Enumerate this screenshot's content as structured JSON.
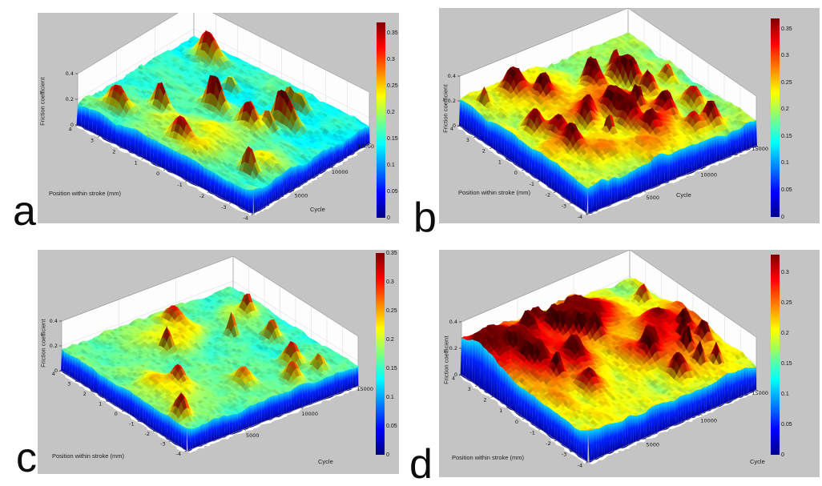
{
  "figure": {
    "background": "#ffffff",
    "panel_background": "#c4c4c4",
    "description": "Four MATLAB-style 3D surface plots (a, b, c, d) of friction coefficient versus position within stroke and cycle number, each with a jet colorbar"
  },
  "colormap": {
    "name": "jet",
    "stops": [
      "#000080",
      "#0000ff",
      "#00ffff",
      "#ffff00",
      "#ff0000",
      "#800000"
    ],
    "fractions": [
      0,
      0.125,
      0.375,
      0.625,
      0.875,
      1
    ]
  },
  "chart_data": [
    {
      "id": "a",
      "panel_label": "a",
      "type": "heatmap",
      "projection": "3d-surface",
      "xlabel": "Cycle",
      "x_ticks": [
        5000,
        10000,
        15000
      ],
      "x_range": [
        0,
        15000
      ],
      "ylabel": "Position within stroke (mm)",
      "y_ticks": [
        4,
        3,
        2,
        1,
        0,
        -1,
        -2,
        -3,
        -4
      ],
      "y_range": [
        -4,
        4
      ],
      "zlabel": "Friction coefficient",
      "z_ticks": [
        0.4,
        0.2,
        0
      ],
      "z_range": [
        0,
        0.4
      ],
      "colorbar_ticks": [
        0.35,
        0.3,
        0.25,
        0.2,
        0.15,
        0.1,
        0.05,
        0
      ],
      "colorbar_range": [
        0,
        0.37
      ],
      "surface": {
        "seed": 17,
        "base_front": 0.17,
        "base_back": 0.14,
        "coarse_amp": 0.018,
        "fine_amp": 0.012,
        "patch_count": 8,
        "patch_amp": 0.045,
        "spike_count": 15,
        "spike_min": 0.26,
        "spike_max": 0.36,
        "hot_bands": [],
        "description": "cyan-green baseline ~0.15-0.2 with scattered yellow patches and ~15 isolated red spikes up to ~0.35; cooler cyan toward high cycles"
      }
    },
    {
      "id": "b",
      "panel_label": "b",
      "type": "heatmap",
      "projection": "3d-surface",
      "xlabel": "Cycle",
      "x_ticks": [
        5000,
        10000,
        15000
      ],
      "x_range": [
        0,
        15000
      ],
      "ylabel": "Position within stroke (mm)",
      "y_ticks": [
        4,
        3,
        2,
        1,
        0,
        -1,
        -2,
        -3,
        -4
      ],
      "y_range": [
        -4,
        4
      ],
      "zlabel": "Friction coefficient",
      "z_ticks": [
        0.4,
        0.2,
        0
      ],
      "z_range": [
        0,
        0.4
      ],
      "colorbar_ticks": [
        0.35,
        0.3,
        0.25,
        0.2,
        0.15,
        0.1,
        0.05,
        0
      ],
      "colorbar_range": [
        0,
        0.37
      ],
      "surface": {
        "seed": 23,
        "base_front": 0.215,
        "base_back": 0.19,
        "coarse_amp": 0.022,
        "fine_amp": 0.014,
        "patch_count": 13,
        "patch_amp": 0.05,
        "spike_count": 26,
        "spike_min": 0.28,
        "spike_max": 0.37,
        "hot_bands": [],
        "description": "yellow-green baseline ~0.2 with many orange patches and numerous red spikes up to ~0.37"
      }
    },
    {
      "id": "c",
      "panel_label": "c",
      "type": "heatmap",
      "projection": "3d-surface",
      "xlabel": "Cycle",
      "x_ticks": [
        5000,
        10000,
        15000
      ],
      "x_range": [
        0,
        15000
      ],
      "ylabel": "Position within stroke (mm)",
      "y_ticks": [
        4,
        3,
        2,
        1,
        0,
        -1,
        -2,
        -3,
        -4
      ],
      "y_range": [
        -4,
        4
      ],
      "zlabel": "Friction coefficient",
      "z_ticks": [
        0.4,
        0.2,
        0
      ],
      "z_range": [
        0,
        0.4
      ],
      "colorbar_ticks": [
        0.35,
        0.3,
        0.25,
        0.2,
        0.15,
        0.1,
        0.05,
        0
      ],
      "colorbar_range": [
        0,
        0.35
      ],
      "surface": {
        "seed": 31,
        "base_front": 0.17,
        "base_back": 0.155,
        "coarse_amp": 0.015,
        "fine_amp": 0.011,
        "patch_count": 6,
        "patch_amp": 0.04,
        "spike_count": 11,
        "spike_min": 0.26,
        "spike_max": 0.34,
        "hot_bands": [],
        "description": "calm green-cyan baseline ~0.17 with few yellow patches and ~11 red spikes up to ~0.34"
      }
    },
    {
      "id": "d",
      "panel_label": "d",
      "type": "heatmap",
      "projection": "3d-surface",
      "xlabel": "Cycle",
      "x_ticks": [
        5000,
        10000,
        15000
      ],
      "x_range": [
        0,
        15000
      ],
      "ylabel": "Position within stroke (mm)",
      "y_ticks": [
        4,
        3,
        2,
        1,
        0,
        -1,
        -2,
        -3,
        -4
      ],
      "y_range": [
        -4,
        4
      ],
      "zlabel": "Friction coefficient",
      "z_ticks": [
        0.4,
        0.2,
        0
      ],
      "z_range": [
        0,
        0.4
      ],
      "colorbar_ticks": [
        0.3,
        0.25,
        0.2,
        0.15,
        0.1,
        0.05,
        0
      ],
      "colorbar_range": [
        0,
        0.33
      ],
      "surface": {
        "seed": 41,
        "base_front": 0.21,
        "base_back": 0.185,
        "coarse_amp": 0.022,
        "fine_amp": 0.013,
        "patch_count": 12,
        "patch_amp": 0.05,
        "spike_count": 24,
        "spike_min": 0.27,
        "spike_max": 0.33,
        "hot_bands": [
          {
            "u": 0.08,
            "v": 0.85,
            "su": 0.2,
            "sv": 0.12,
            "amp": 0.1
          },
          {
            "u": 0.28,
            "v": 0.68,
            "su": 0.22,
            "sv": 0.18,
            "amp": 0.05
          }
        ],
        "description": "yellow-orange baseline ~0.2 with a dark-red high-friction band near one side of the stroke at early cycles, reaching ~0.3"
      }
    }
  ]
}
